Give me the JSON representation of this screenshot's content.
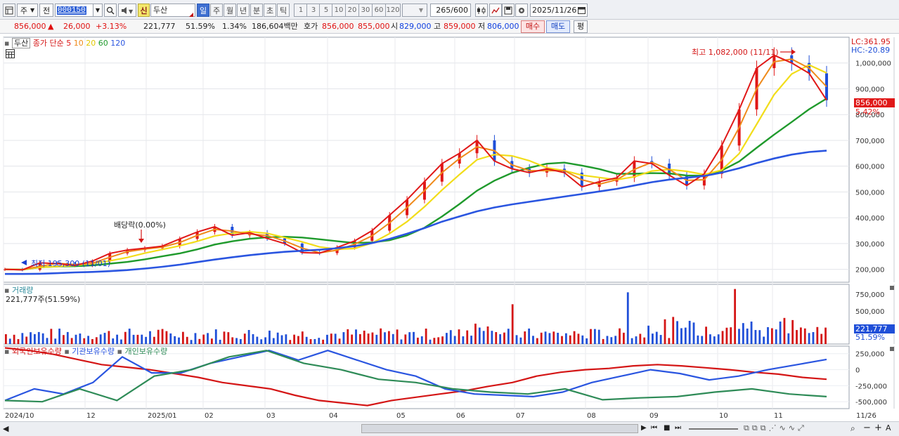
{
  "toolbar": {
    "market_label": "주",
    "prev_label": "전",
    "code": "000150",
    "new_tag": "신",
    "stock_name": "두산",
    "periods": [
      "일",
      "주",
      "월",
      "년",
      "분",
      "초",
      "틱"
    ],
    "active_period": "일",
    "intervals": [
      "1",
      "3",
      "5",
      "10",
      "20",
      "30",
      "60",
      "120"
    ],
    "count": "265/600",
    "date": "2025/11/26"
  },
  "quote": {
    "price": "856,000",
    "change_arrow": "▲",
    "change": "26,000",
    "change_pct": "+3.13%",
    "volume": "221,777",
    "volume_ratio": "51.59%",
    "turnover": "1.34%",
    "amount": "186,604백만",
    "hoga_label": "호가",
    "ask": "856,000",
    "bid": "855,000",
    "open_label": "시",
    "open": "829,000",
    "high_label": "고",
    "high": "859,000",
    "low_label": "저",
    "low": "806,000",
    "buy_label": "매수",
    "sell_label": "매도",
    "avg_label": "평"
  },
  "price_panel": {
    "stock_tag": "두산",
    "legend_prefix": "종가 단순",
    "ma_labels": [
      "5",
      "10",
      "20",
      "60",
      "120"
    ],
    "ma_colors": [
      "#e01818",
      "#ef8a1a",
      "#f2dd1a",
      "#1f9a2c",
      "#2a55e0"
    ],
    "lc": "LC:361.95",
    "hc": "HC:-20.89",
    "max_annotation": "최고 1,082,000 (11/11)",
    "min_annotation": "최저 195,300 (11/01)",
    "dividend_annotation": "배당락(0.00%)",
    "current_price_tag": "856,000",
    "current_pct_tag": "5.42%"
  },
  "volume_panel": {
    "title": "거래량",
    "value": "221,777주(51.59%)",
    "current_tag": "221,777",
    "current_pct_tag": "51.59%"
  },
  "holdings_panel": {
    "series": [
      "외국인보유수량",
      "기관보유수량",
      "개인보유수량"
    ],
    "colors": [
      "#d41515",
      "#2a55e0",
      "#2e8b57"
    ]
  },
  "chart_data": [
    {
      "type": "line",
      "title": "두산",
      "x_labels": [
        "2024/10",
        "12",
        "2025/01",
        "02",
        "03",
        "04",
        "05",
        "06",
        "07",
        "08",
        "09",
        "10",
        "11",
        "11/26"
      ],
      "ylim": [
        150000,
        1100000
      ],
      "y_ticks": [
        "200,000",
        "300,000",
        "400,000",
        "500,000",
        "600,000",
        "700,000",
        "800,000",
        "900,000",
        "1,000,000"
      ],
      "series": [
        {
          "name": "종가",
          "values": [
            200000,
            198000,
            225000,
            222000,
            215000,
            232000,
            262000,
            275000,
            282000,
            290000,
            318000,
            345000,
            365000,
            332000,
            342000,
            320000,
            300000,
            265000,
            263000,
            285000,
            310000,
            350000,
            410000,
            470000,
            540000,
            610000,
            650000,
            700000,
            620000,
            590000,
            575000,
            590000,
            575000,
            520000,
            540000,
            555000,
            620000,
            610000,
            565000,
            525000,
            570000,
            680000,
            820000,
            980000,
            1030000,
            1000000,
            960000,
            856000
          ]
        },
        {
          "name": "120",
          "values": [
            182000,
            182000,
            183000,
            185000,
            188000,
            190000,
            193000,
            197000,
            203000,
            210000,
            218000,
            228000,
            238000,
            247000,
            255000,
            262000,
            268000,
            272000,
            276000,
            282000,
            290000,
            302000,
            318000,
            338000,
            360000,
            385000,
            405000,
            425000,
            440000,
            452000,
            462000,
            472000,
            482000,
            492000,
            502000,
            512000,
            525000,
            538000,
            548000,
            555000,
            562000,
            575000,
            592000,
            612000,
            630000,
            645000,
            655000,
            660000
          ]
        }
      ]
    },
    {
      "type": "bar",
      "title": "거래량",
      "yticks": [
        "250,000",
        "500,000",
        "750,000"
      ],
      "last_value": 221777
    },
    {
      "type": "line",
      "yticks": [
        "250,000",
        "0",
        "-250,000",
        "-500,000"
      ],
      "series": [
        {
          "name": "외국인보유수량",
          "values": [
            340000,
            300000,
            240000,
            160000,
            80000,
            40000,
            0,
            -60000,
            -120000,
            -200000,
            -250000,
            -300000,
            -400000,
            -480000,
            -520000,
            -560000,
            -480000,
            -430000,
            -380000,
            -330000,
            -260000,
            -200000,
            -100000,
            -40000,
            0,
            20000,
            60000,
            80000,
            60000,
            30000,
            0,
            -40000,
            -70000,
            -120000,
            -150000
          ]
        },
        {
          "name": "기관보유수량",
          "values": [
            -480000,
            -300000,
            -380000,
            -200000,
            200000,
            -50000,
            -50000,
            100000,
            200000,
            300000,
            150000,
            300000,
            150000,
            0,
            -100000,
            -300000,
            -380000,
            -400000,
            -420000,
            -350000,
            -200000,
            -100000,
            0,
            -60000,
            -160000,
            -100000,
            0,
            80000,
            160000
          ]
        },
        {
          "name": "개인보유수량",
          "values": [
            -480000,
            -500000,
            -300000,
            -480000,
            -100000,
            0,
            200000,
            300000,
            100000,
            0,
            -150000,
            -200000,
            -300000,
            -350000,
            -380000,
            -300000,
            -470000,
            -440000,
            -420000,
            -350000,
            -300000,
            -380000,
            -420000
          ]
        }
      ]
    }
  ]
}
